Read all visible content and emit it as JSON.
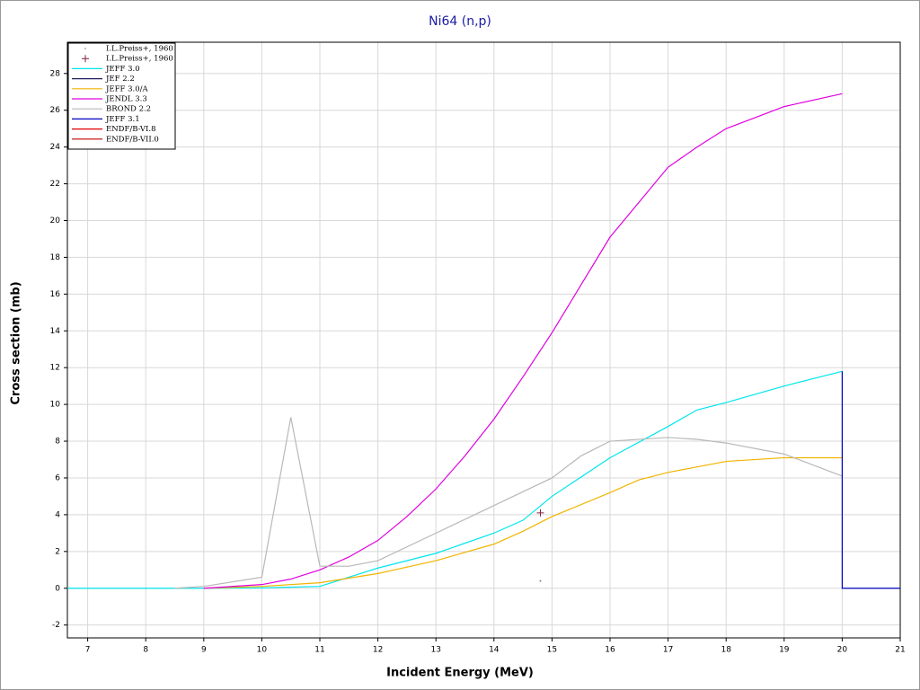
{
  "chart_data": {
    "type": "line",
    "title": "Ni64 (n,p)",
    "x_label": "Incident Energy (MeV)",
    "y_label": "Cross section (mb)",
    "xlim": [
      6.65,
      21
    ],
    "ylim": [
      -2.7,
      29.7
    ],
    "xticks": [
      7,
      8,
      9,
      10,
      11,
      12,
      13,
      14,
      15,
      16,
      17,
      18,
      19,
      20,
      21
    ],
    "yticks": [
      -2,
      0,
      2,
      4,
      6,
      8,
      10,
      12,
      14,
      16,
      18,
      20,
      22,
      24,
      26,
      28
    ],
    "grid": true,
    "legend": "top-left",
    "series": [
      {
        "name": "I.L.Preiss+, 1960",
        "color": "#808080",
        "marker": "dot",
        "x": [
          14.8
        ],
        "values": [
          0.4
        ]
      },
      {
        "name": "I.L.Preiss+, 1960",
        "color": "#802040",
        "marker": "plus",
        "x": [
          14.8
        ],
        "values": [
          4.1
        ]
      },
      {
        "name": "JEFF 3.0",
        "color": "#00e5ee",
        "x": [
          6.65,
          9,
          10,
          11,
          12,
          13,
          14,
          14.5,
          15,
          16,
          17,
          17.5,
          18,
          19,
          20
        ],
        "values": [
          0,
          0,
          0.02,
          0.1,
          1.1,
          1.9,
          3.0,
          3.7,
          5.0,
          7.1,
          8.8,
          9.7,
          10.1,
          11.0,
          11.8
        ]
      },
      {
        "name": "JEF 2.2",
        "color": "#202060",
        "x": [],
        "values": []
      },
      {
        "name": "JEFF 3.0/A",
        "color": "#f0b400",
        "x": [
          9,
          10,
          11,
          12,
          13,
          14,
          14.5,
          15,
          16,
          16.5,
          17,
          17.5,
          18,
          19,
          20
        ],
        "values": [
          0,
          0.1,
          0.3,
          0.8,
          1.5,
          2.4,
          3.1,
          3.9,
          5.2,
          5.9,
          6.3,
          6.6,
          6.9,
          7.1,
          7.1
        ]
      },
      {
        "name": "JENDL 3.3",
        "color": "#e000e0",
        "x": [
          9,
          10,
          10.5,
          11,
          11.5,
          12,
          12.5,
          13,
          13.5,
          14,
          14.5,
          15,
          15.5,
          16,
          16.5,
          17,
          17.5,
          18,
          18.5,
          19,
          20
        ],
        "values": [
          0,
          0.2,
          0.5,
          1.0,
          1.7,
          2.6,
          3.9,
          5.4,
          7.2,
          9.2,
          11.5,
          13.9,
          16.5,
          19.1,
          21.0,
          22.9,
          24.0,
          25.0,
          25.6,
          26.2,
          26.9
        ]
      },
      {
        "name": "BROND 2.2",
        "color": "#b8b8b8",
        "x": [
          8.5,
          9,
          10,
          10.5,
          11,
          11.5,
          12,
          13,
          14,
          15,
          15.5,
          16,
          17,
          17.5,
          18,
          19,
          20
        ],
        "values": [
          0,
          0.1,
          0.6,
          9.3,
          1.2,
          1.2,
          1.5,
          3.0,
          4.5,
          6.0,
          7.2,
          8.0,
          8.2,
          8.1,
          7.9,
          7.3,
          6.1
        ]
      },
      {
        "name": "JEFF 3.1",
        "color": "#0000c0",
        "x": [
          20,
          20,
          21
        ],
        "values": [
          11.8,
          0,
          0
        ]
      },
      {
        "name": "ENDF/B-VI.8",
        "color": "#e00000",
        "x": [],
        "values": []
      },
      {
        "name": "ENDF/B-VII.0",
        "color": "#c00000",
        "x": [],
        "values": []
      }
    ]
  }
}
